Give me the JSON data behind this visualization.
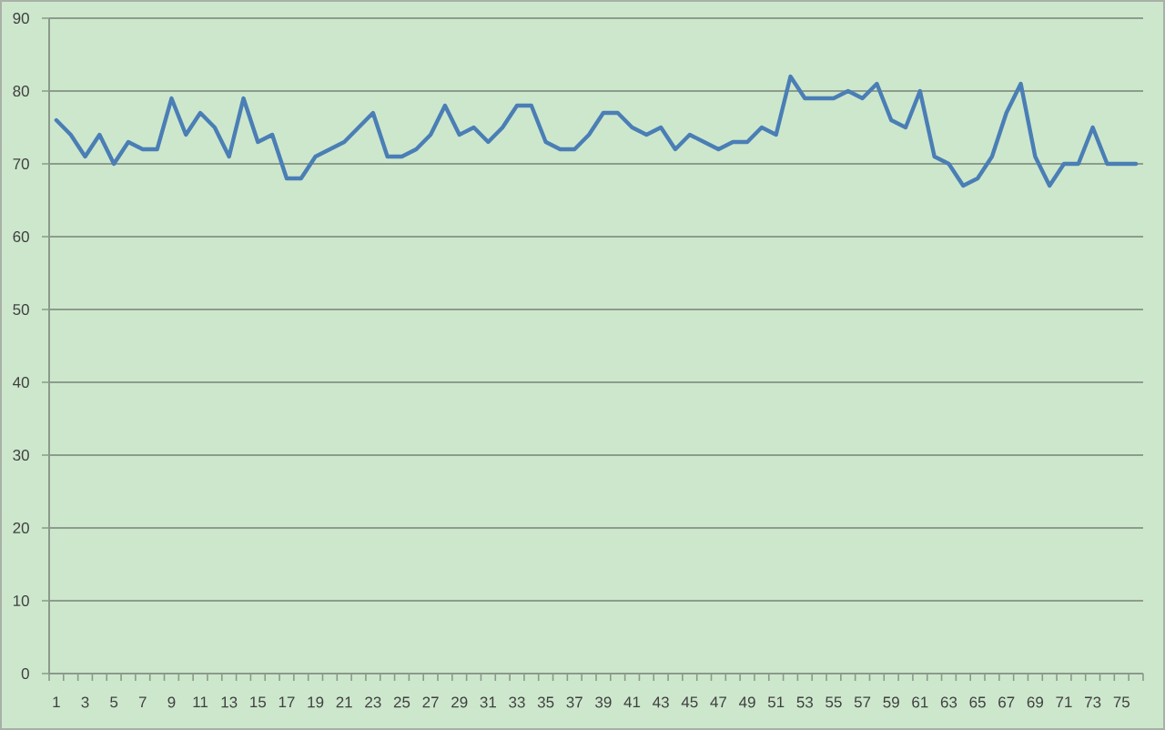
{
  "chart_data": {
    "type": "line",
    "categories": [
      "1",
      null,
      "3",
      null,
      "5",
      null,
      "7",
      null,
      "9",
      null,
      "11",
      null,
      "13",
      null,
      "15",
      null,
      "17",
      null,
      "19",
      null,
      "21",
      null,
      "23",
      null,
      "25",
      null,
      "27",
      null,
      "29",
      null,
      "31",
      null,
      "33",
      null,
      "35",
      null,
      "37",
      null,
      "39",
      null,
      "41",
      null,
      "43",
      null,
      "45",
      null,
      "47",
      null,
      "49",
      null,
      "51",
      null,
      "53",
      null,
      "55",
      null,
      "57",
      null,
      "59",
      null,
      "61",
      null,
      "63",
      null,
      "65",
      null,
      "67",
      null,
      "69",
      null,
      "71",
      null,
      "73",
      null,
      "75",
      null
    ],
    "series": [
      {
        "color": "#4a7eb5",
        "values": [
          76,
          74,
          71,
          74,
          70,
          73,
          72,
          72,
          79,
          74,
          77,
          75,
          71,
          79,
          73,
          74,
          68,
          68,
          71,
          72,
          73,
          75,
          77,
          71,
          71,
          72,
          74,
          78,
          74,
          75,
          73,
          75,
          78,
          78,
          73,
          72,
          72,
          74,
          77,
          77,
          75,
          74,
          75,
          72,
          74,
          73,
          72,
          73,
          73,
          75,
          74,
          82,
          79,
          79,
          79,
          80,
          79,
          81,
          76,
          75,
          80,
          71,
          70,
          67,
          68,
          71,
          77,
          81,
          71,
          67,
          70,
          70,
          75,
          70,
          70,
          70
        ]
      }
    ],
    "ylim": [
      0,
      90
    ],
    "yticks": [
      0,
      10,
      20,
      30,
      40,
      50,
      60,
      70,
      80,
      90
    ],
    "grid": "y"
  }
}
